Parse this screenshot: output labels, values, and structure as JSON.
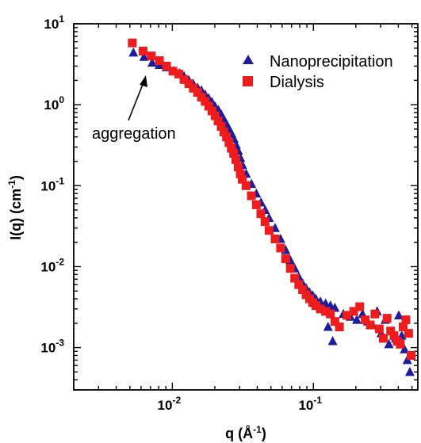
{
  "chart_data": {
    "type": "scatter",
    "xscale": "log",
    "yscale": "log",
    "xlim": [
      0.002,
      0.55
    ],
    "ylim": [
      0.0003,
      10
    ],
    "xlabel": {
      "base": "q (Å",
      "sup": "-1",
      "tail": ")"
    },
    "ylabel": {
      "base": "I(q) (cm",
      "sup": "-1",
      "tail": ")"
    },
    "x_ticks": [
      {
        "value": 0.01,
        "base": "10",
        "exp": "-2"
      },
      {
        "value": 0.1,
        "base": "10",
        "exp": "-1"
      }
    ],
    "y_ticks": [
      {
        "value": 10,
        "base": "10",
        "exp": "1"
      },
      {
        "value": 1,
        "base": "10",
        "exp": "0"
      },
      {
        "value": 0.1,
        "base": "10",
        "exp": "-1"
      },
      {
        "value": 0.01,
        "base": "10",
        "exp": "-2"
      },
      {
        "value": 0.001,
        "base": "10",
        "exp": "-3"
      }
    ],
    "legend_position": "top-right",
    "series": [
      {
        "name": "Nanoprecipitation",
        "marker": "triangle",
        "color": "#1c1c9c",
        "points": [
          [
            0.0053,
            4.4
          ],
          [
            0.0063,
            3.9
          ],
          [
            0.0072,
            3.3
          ],
          [
            0.0081,
            3.1
          ],
          [
            0.0091,
            2.9
          ],
          [
            0.0103,
            2.6
          ],
          [
            0.0112,
            2.45
          ],
          [
            0.0121,
            2.25
          ],
          [
            0.0131,
            2.0
          ],
          [
            0.0141,
            1.8
          ],
          [
            0.0151,
            1.62
          ],
          [
            0.0161,
            1.5
          ],
          [
            0.0171,
            1.33
          ],
          [
            0.0181,
            1.2
          ],
          [
            0.0191,
            1.08
          ],
          [
            0.0201,
            0.95
          ],
          [
            0.0212,
            0.86
          ],
          [
            0.0222,
            0.76
          ],
          [
            0.0232,
            0.66
          ],
          [
            0.0242,
            0.58
          ],
          [
            0.0253,
            0.5
          ],
          [
            0.0263,
            0.44
          ],
          [
            0.0273,
            0.38
          ],
          [
            0.0283,
            0.32
          ],
          [
            0.0293,
            0.27
          ],
          [
            0.0304,
            0.22
          ],
          [
            0.0314,
            0.18
          ],
          [
            0.0334,
            0.14
          ],
          [
            0.0364,
            0.105
          ],
          [
            0.0394,
            0.08
          ],
          [
            0.0425,
            0.062
          ],
          [
            0.0455,
            0.05
          ],
          [
            0.0485,
            0.04
          ],
          [
            0.0535,
            0.03
          ],
          [
            0.0585,
            0.022
          ],
          [
            0.0636,
            0.016
          ],
          [
            0.0686,
            0.012
          ],
          [
            0.0737,
            0.0095
          ],
          [
            0.0787,
            0.0075
          ],
          [
            0.0838,
            0.0062
          ],
          [
            0.0888,
            0.0054
          ],
          [
            0.0939,
            0.0048
          ],
          [
            0.099,
            0.0044
          ],
          [
            0.104,
            0.004
          ],
          [
            0.112,
            0.0037
          ],
          [
            0.122,
            0.0035
          ],
          [
            0.132,
            0.0033
          ],
          [
            0.142,
            0.0031
          ],
          [
            0.127,
            0.0018
          ],
          [
            0.137,
            0.0012
          ],
          [
            0.163,
            0.0026
          ],
          [
            0.183,
            0.0024
          ],
          [
            0.203,
            0.0022
          ],
          [
            0.223,
            0.0026
          ],
          [
            0.243,
            0.0021
          ],
          [
            0.263,
            0.0019
          ],
          [
            0.283,
            0.0028
          ],
          [
            0.303,
            0.0015
          ],
          [
            0.323,
            0.0022
          ],
          [
            0.343,
            0.0011
          ],
          [
            0.363,
            0.0016
          ],
          [
            0.383,
            0.0013
          ],
          [
            0.403,
            0.0025
          ],
          [
            0.423,
            0.0014
          ],
          [
            0.443,
            0.00095
          ],
          [
            0.463,
            0.0007
          ],
          [
            0.483,
            0.0005
          ]
        ]
      },
      {
        "name": "Dialysis",
        "marker": "square",
        "color": "#ee1c1c",
        "points": [
          [
            0.0052,
            5.8
          ],
          [
            0.0062,
            4.6
          ],
          [
            0.0071,
            4.0
          ],
          [
            0.0081,
            3.5
          ],
          [
            0.0091,
            3.0
          ],
          [
            0.0101,
            2.6
          ],
          [
            0.0111,
            2.4
          ],
          [
            0.0121,
            2.05
          ],
          [
            0.0131,
            1.82
          ],
          [
            0.0141,
            1.6
          ],
          [
            0.0151,
            1.42
          ],
          [
            0.0161,
            1.24
          ],
          [
            0.0171,
            1.1
          ],
          [
            0.0181,
            0.96
          ],
          [
            0.0191,
            0.84
          ],
          [
            0.0201,
            0.73
          ],
          [
            0.0211,
            0.63
          ],
          [
            0.0222,
            0.54
          ],
          [
            0.0232,
            0.46
          ],
          [
            0.0242,
            0.4
          ],
          [
            0.0252,
            0.34
          ],
          [
            0.0262,
            0.29
          ],
          [
            0.0272,
            0.25
          ],
          [
            0.0282,
            0.21
          ],
          [
            0.0293,
            0.17
          ],
          [
            0.0303,
            0.14
          ],
          [
            0.0313,
            0.12
          ],
          [
            0.0333,
            0.1
          ],
          [
            0.0363,
            0.075
          ],
          [
            0.0394,
            0.058
          ],
          [
            0.0424,
            0.045
          ],
          [
            0.0454,
            0.036
          ],
          [
            0.0485,
            0.028
          ],
          [
            0.0535,
            0.022
          ],
          [
            0.0585,
            0.017
          ],
          [
            0.0636,
            0.0125
          ],
          [
            0.0686,
            0.0095
          ],
          [
            0.0737,
            0.0072
          ],
          [
            0.0787,
            0.006
          ],
          [
            0.0838,
            0.0052
          ],
          [
            0.0888,
            0.0045
          ],
          [
            0.0939,
            0.004
          ],
          [
            0.099,
            0.0036
          ],
          [
            0.104,
            0.0033
          ],
          [
            0.112,
            0.003
          ],
          [
            0.122,
            0.0028
          ],
          [
            0.132,
            0.0026
          ],
          [
            0.142,
            0.0021
          ],
          [
            0.153,
            0.0018
          ],
          [
            0.173,
            0.0025
          ],
          [
            0.193,
            0.0028
          ],
          [
            0.213,
            0.0032
          ],
          [
            0.233,
            0.0022
          ],
          [
            0.253,
            0.0019
          ],
          [
            0.273,
            0.0026
          ],
          [
            0.293,
            0.0017
          ],
          [
            0.313,
            0.0013
          ],
          [
            0.333,
            0.0023
          ],
          [
            0.353,
            0.0016
          ],
          [
            0.373,
            0.0014
          ],
          [
            0.393,
            0.0012
          ],
          [
            0.413,
            0.0011
          ],
          [
            0.433,
            0.0018
          ],
          [
            0.453,
            0.0022
          ],
          [
            0.473,
            0.0015
          ],
          [
            0.493,
            0.0008
          ]
        ]
      }
    ],
    "annotation": {
      "text": "aggregation",
      "arrow_to": [
        0.0068,
        3.0
      ]
    }
  }
}
